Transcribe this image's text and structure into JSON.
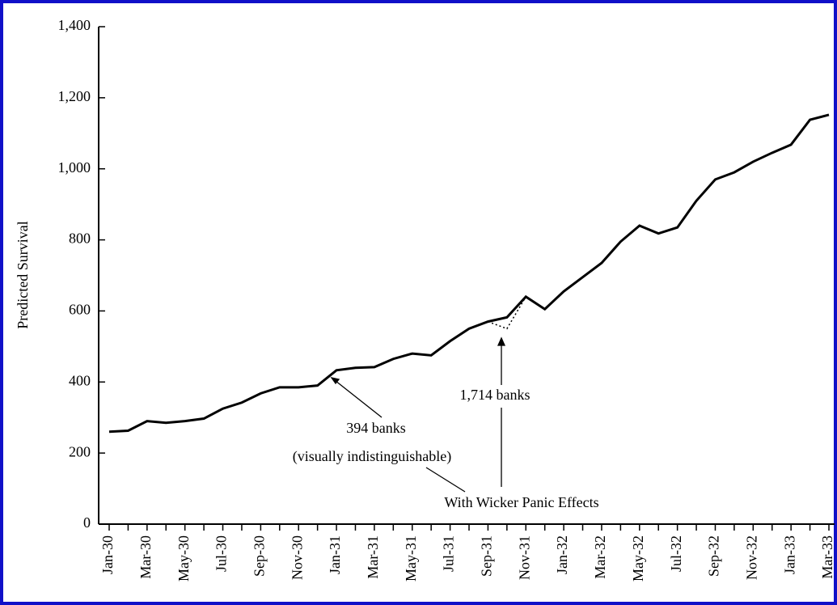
{
  "chart_data": {
    "type": "line",
    "y_label": "Predicted Survival",
    "categories": [
      "Jan-30",
      null,
      "Mar-30",
      null,
      "May-30",
      null,
      "Jul-30",
      null,
      "Sep-30",
      null,
      "Nov-30",
      null,
      "Jan-31",
      null,
      "Mar-31",
      null,
      "May-31",
      null,
      "Jul-31",
      null,
      "Sep-31",
      null,
      "Nov-31",
      null,
      "Jan-32",
      null,
      "Mar-32",
      null,
      "May-32",
      null,
      "Jul-32",
      null,
      "Sep-32",
      null,
      "Nov-32",
      null,
      "Jan-33",
      null,
      "Mar-33"
    ],
    "series": [
      {
        "color": "#000000",
        "dash": "solid",
        "values": [
          260,
          263,
          290,
          285,
          290,
          297,
          325,
          342,
          368,
          385,
          385,
          390,
          433,
          440,
          442,
          465,
          480,
          475,
          515,
          550,
          570,
          582,
          640,
          605,
          655,
          695,
          735,
          795,
          840,
          818,
          835,
          910,
          970,
          990,
          1020,
          1045,
          1068,
          1138,
          1152
        ]
      },
      {
        "name": "With Wicker Panic Effects",
        "color": "#000000",
        "dash": "dotted",
        "values": [
          null,
          null,
          null,
          null,
          null,
          null,
          null,
          null,
          null,
          null,
          null,
          null,
          null,
          null,
          null,
          null,
          null,
          null,
          null,
          null,
          570,
          550,
          640,
          null,
          null,
          null,
          null,
          null,
          null,
          null,
          null,
          null,
          null,
          null,
          null,
          null,
          null,
          null,
          null
        ]
      }
    ],
    "annotations": [
      "394 banks",
      "(visually indistinguishable)",
      "1,714 banks"
    ],
    "ylim": [
      0,
      1400
    ],
    "yticks": [
      0,
      200,
      400,
      600,
      800,
      {
        "value": 1000,
        "label": "1,000"
      },
      {
        "value": 1200,
        "label": "1,200"
      },
      {
        "value": 1400,
        "label": "1,400"
      }
    ],
    "grid": false
  }
}
